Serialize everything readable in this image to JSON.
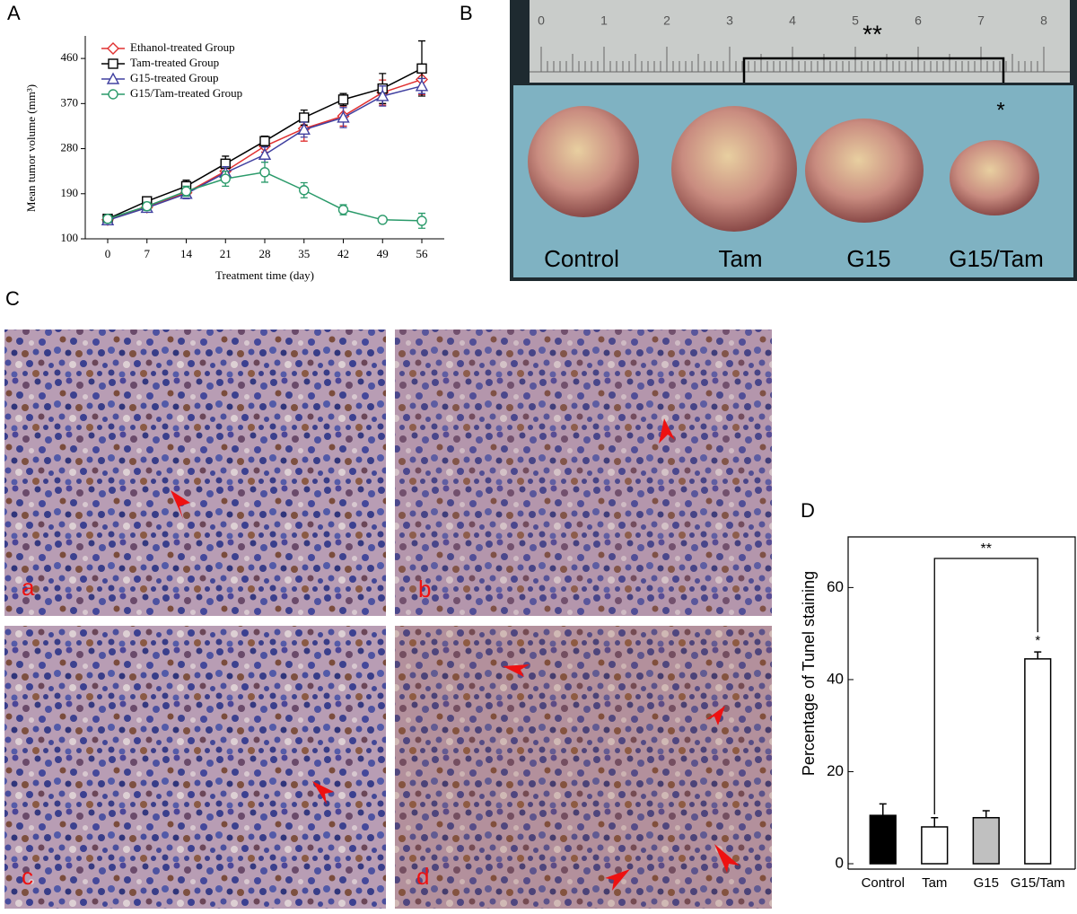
{
  "panel_letters": [
    "A",
    "B",
    "C",
    "D"
  ],
  "chart_data": [
    {
      "type": "line",
      "ylabel": "Mean tumor volume (mm³)",
      "xlabel": "Treatment time (day)",
      "x": [
        0,
        7,
        14,
        21,
        28,
        35,
        42,
        49,
        56
      ],
      "xlim": [
        -4,
        60
      ],
      "xticks": [
        0,
        7,
        14,
        21,
        28,
        35,
        42,
        49,
        56
      ],
      "ylim": [
        100,
        505
      ],
      "yticks": [
        100,
        190,
        280,
        370,
        460
      ],
      "legend": "upper left",
      "series": [
        {
          "name": "Ethanol-treated Group",
          "color": "#e03030",
          "marker": "diamond",
          "values": [
            138,
            163,
            192,
            235,
            285,
            320,
            345,
            392,
            418
          ],
          "errors": [
            5,
            8,
            10,
            12,
            12,
            25,
            20,
            25,
            30
          ]
        },
        {
          "name": "Tam-treated Group",
          "color": "#000000",
          "marker": "square",
          "values": [
            140,
            175,
            205,
            250,
            295,
            342,
            378,
            400,
            440
          ],
          "errors": [
            5,
            8,
            12,
            15,
            10,
            15,
            12,
            30,
            55
          ]
        },
        {
          "name": "G15-treated Group",
          "color": "#4040a0",
          "marker": "triangle",
          "values": [
            137,
            162,
            190,
            232,
            268,
            318,
            342,
            385,
            405
          ],
          "errors": [
            5,
            8,
            10,
            12,
            15,
            15,
            20,
            20,
            15
          ]
        },
        {
          "name": "G15/Tam-treated Group",
          "color": "#2a9a6a",
          "marker": "circle",
          "values": [
            140,
            165,
            195,
            220,
            233,
            197,
            158,
            138,
            136
          ],
          "errors": [
            8,
            8,
            10,
            15,
            20,
            15,
            10,
            5,
            15
          ]
        }
      ]
    },
    {
      "type": "bar",
      "ylabel": "Percentage of Tunel staining",
      "categories": [
        "Control",
        "Tam",
        "G15",
        "G15/Tam"
      ],
      "values": [
        10.5,
        8,
        10,
        44.5
      ],
      "errors": [
        2.5,
        2,
        1.5,
        1.5
      ],
      "colors": [
        "#000000",
        "#ffffff",
        "#c0c0c0",
        "#ffffff"
      ],
      "ylim": [
        0,
        71
      ],
      "yticks": [
        0,
        20,
        40,
        60
      ],
      "annotations": {
        "bracket": "**",
        "bar": "*"
      }
    }
  ],
  "photo": {
    "ruler_labels": [
      0,
      1,
      2,
      3,
      4,
      5,
      6,
      7,
      8
    ],
    "bracket_label": "**",
    "star_label": "*",
    "tumor_labels": [
      "Control",
      "Tam",
      "G15",
      "G15/Tam"
    ]
  },
  "micrographs": {
    "labels": [
      "a",
      "b",
      "c",
      "d"
    ]
  }
}
